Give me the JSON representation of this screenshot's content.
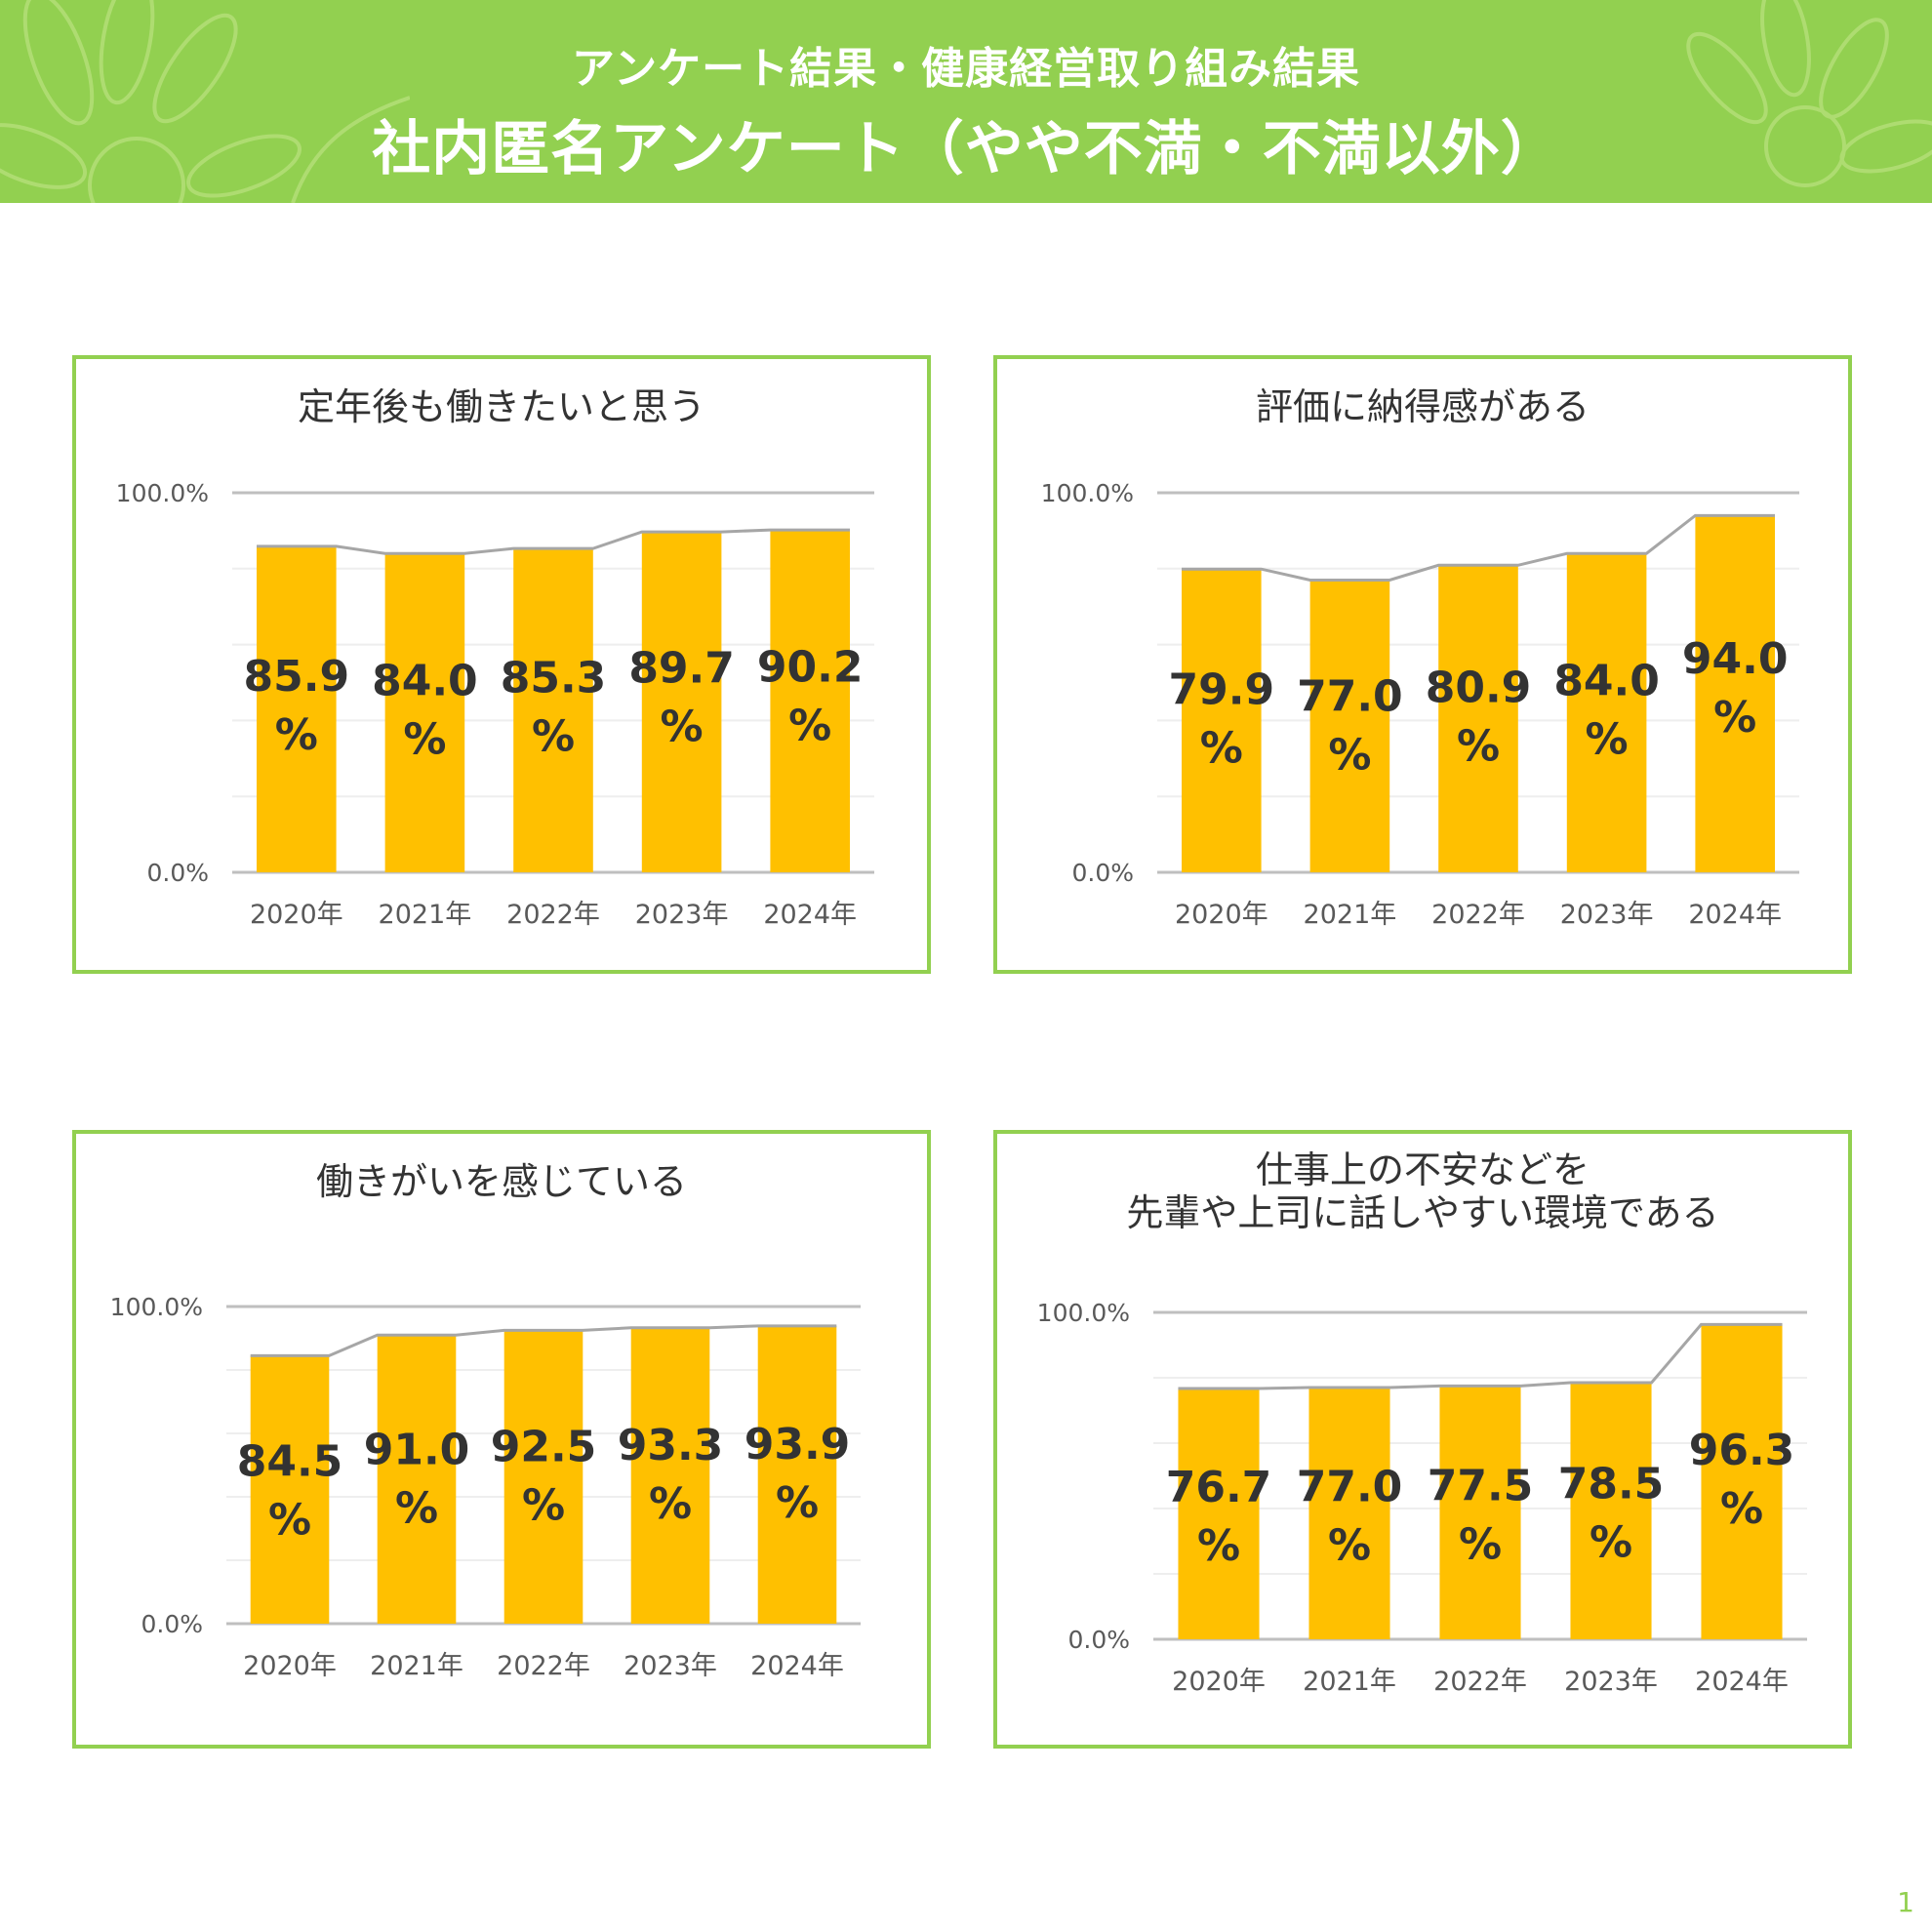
{
  "header": {
    "subtitle": "アンケート結果・健康経営取り組み結果",
    "title": "社内匿名アンケート（やや不満・不満以外）"
  },
  "page_number": "1",
  "colors": {
    "accent": "#92d050",
    "bar": "#ffc000",
    "line": "#a6a6a6",
    "grid": "#d9d9d9"
  },
  "chart_data": [
    {
      "type": "bar",
      "title": [
        "定年後も働きたいと思う"
      ],
      "categories": [
        "2020年",
        "2021年",
        "2022年",
        "2023年",
        "2024年"
      ],
      "values": [
        85.9,
        84.0,
        85.3,
        89.7,
        90.2
      ],
      "value_labels": [
        [
          "85.9",
          "%"
        ],
        [
          "84.0",
          "%"
        ],
        [
          "85.3",
          "%"
        ],
        [
          "89.7",
          "%"
        ],
        [
          "90.2",
          "%"
        ]
      ],
      "ylim": [
        0,
        100
      ],
      "ytick_labels": [
        "0.0%",
        "100.0%"
      ],
      "grid": true,
      "trend_line": true
    },
    {
      "type": "bar",
      "title": [
        "評価に納得感がある"
      ],
      "categories": [
        "2020年",
        "2021年",
        "2022年",
        "2023年",
        "2024年"
      ],
      "values": [
        79.9,
        77.0,
        80.9,
        84.0,
        94.0
      ],
      "value_labels": [
        [
          "79.9",
          "%"
        ],
        [
          "77.0",
          "%"
        ],
        [
          "80.9",
          "%"
        ],
        [
          "84.0",
          "%"
        ],
        [
          "94.0",
          "%"
        ]
      ],
      "ylim": [
        0,
        100
      ],
      "ytick_labels": [
        "0.0%",
        "100.0%"
      ],
      "grid": true,
      "trend_line": true
    },
    {
      "type": "bar",
      "title": [
        "働きがいを感じている"
      ],
      "categories": [
        "2020年",
        "2021年",
        "2022年",
        "2023年",
        "2024年"
      ],
      "values": [
        84.5,
        91.0,
        92.5,
        93.3,
        93.9
      ],
      "value_labels": [
        [
          "84.5",
          "%"
        ],
        [
          "91.0",
          "%"
        ],
        [
          "92.5",
          "%"
        ],
        [
          "93.3",
          "%"
        ],
        [
          "93.9",
          "%"
        ]
      ],
      "ylim": [
        0,
        100
      ],
      "ytick_labels": [
        "0.0%",
        "100.0%"
      ],
      "grid": true,
      "trend_line": true
    },
    {
      "type": "bar",
      "title": [
        "仕事上の不安などを",
        "先輩や上司に話しやすい環境である"
      ],
      "categories": [
        "2020年",
        "2021年",
        "2022年",
        "2023年",
        "2024年"
      ],
      "values": [
        76.7,
        77.0,
        77.5,
        78.5,
        96.3
      ],
      "value_labels": [
        [
          "76.7",
          "%"
        ],
        [
          "77.0",
          "%"
        ],
        [
          "77.5",
          "%"
        ],
        [
          "78.5",
          "%"
        ],
        [
          "96.3",
          "%"
        ]
      ],
      "ylim": [
        0,
        100
      ],
      "ytick_labels": [
        "0.0%",
        "100.0%"
      ],
      "grid": true,
      "trend_line": true
    }
  ]
}
